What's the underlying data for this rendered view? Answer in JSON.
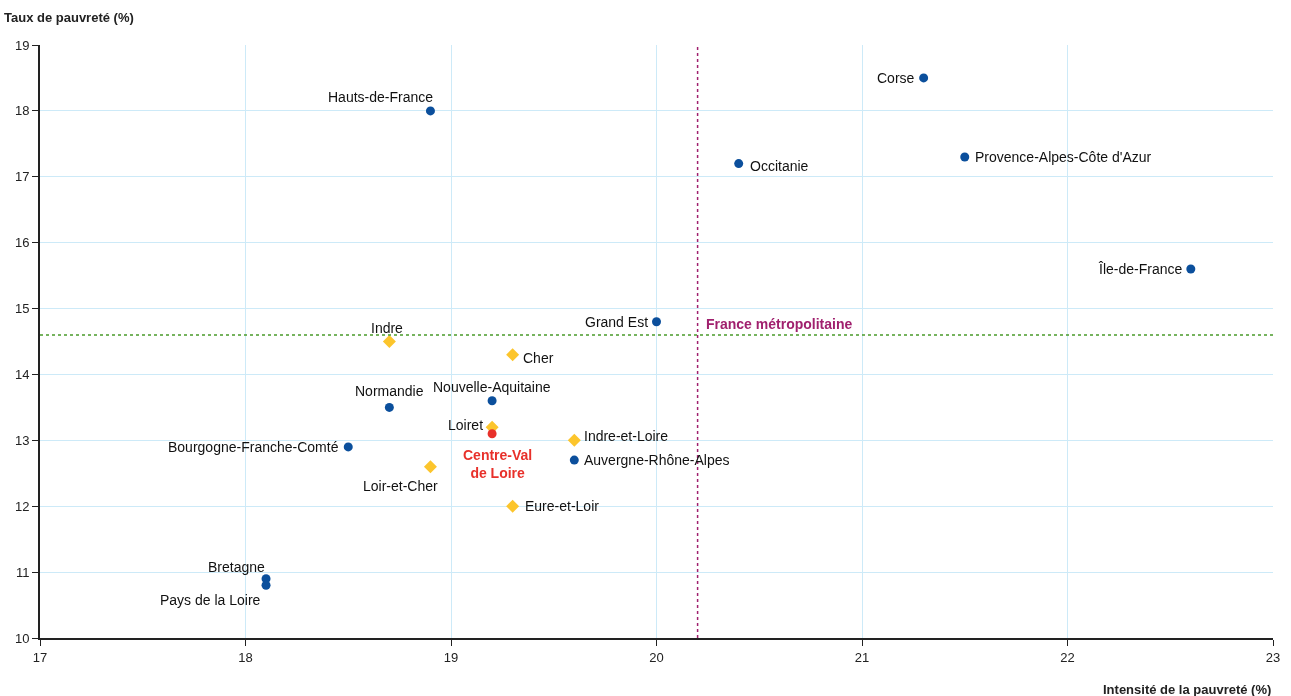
{
  "chart_data": {
    "type": "scatter",
    "xlabel": "Intensité de la pauvreté (%)",
    "ylabel": "Taux de pauvreté (%)",
    "xlim": [
      17,
      23
    ],
    "ylim": [
      10,
      19
    ],
    "xticks": [
      17,
      18,
      19,
      20,
      21,
      22,
      23
    ],
    "yticks": [
      10,
      11,
      12,
      13,
      14,
      15,
      16,
      17,
      18,
      19
    ],
    "grid": true,
    "legend": false,
    "series": [
      {
        "color": "#0b4f9c",
        "marker": "circle",
        "x": [
          18.9,
          21.3,
          20.4,
          21.5,
          22.6,
          20.0,
          18.7,
          19.2,
          18.5,
          19.6,
          18.1,
          18.1
        ],
        "values": [
          18.0,
          18.5,
          17.2,
          17.3,
          15.6,
          14.8,
          13.5,
          13.6,
          12.9,
          12.7,
          10.9,
          10.8
        ]
      },
      {
        "color": "#fcc52c",
        "marker": "diamond",
        "x": [
          18.7,
          19.3,
          19.2,
          19.6,
          18.9,
          19.3
        ],
        "values": [
          14.5,
          14.3,
          13.2,
          13.0,
          12.6,
          12.0
        ]
      },
      {
        "name": "Centre-Val\nde Loire",
        "color": "#e8302a",
        "marker": "circle",
        "x": [
          19.2
        ],
        "values": [
          13.1
        ]
      }
    ],
    "ref_lines": [
      {
        "axis": "x",
        "value": 20.2,
        "color": "#a0206e",
        "line_style": "dotted"
      },
      {
        "axis": "y",
        "value": 14.6,
        "label": "France métropolitaine",
        "color": "#4a9a2a",
        "line_style": "dotted"
      }
    ],
    "annotations": [
      {
        "text": "Hauts-de-France",
        "x": 18.9,
        "y": 18.0
      },
      {
        "text": "Corse",
        "x": 21.3,
        "y": 18.5
      },
      {
        "text": "Occitanie",
        "x": 20.4,
        "y": 17.2
      },
      {
        "text": "Provence-Alpes-Côte d'Azur",
        "x": 21.5,
        "y": 17.3
      },
      {
        "text": "Île-de-France",
        "x": 22.6,
        "y": 15.6
      },
      {
        "text": "Grand Est",
        "x": 20.0,
        "y": 14.8
      },
      {
        "text": "Normandie",
        "x": 18.7,
        "y": 13.5
      },
      {
        "text": "Nouvelle-Aquitaine",
        "x": 19.2,
        "y": 13.6
      },
      {
        "text": "Bourgogne-Franche-Comté",
        "x": 18.5,
        "y": 12.9
      },
      {
        "text": "Auvergne-Rhône-Alpes",
        "x": 19.6,
        "y": 12.7
      },
      {
        "text": "Bretagne",
        "x": 18.1,
        "y": 10.9
      },
      {
        "text": "Pays de la Loire",
        "x": 18.1,
        "y": 10.8
      },
      {
        "text": "Indre",
        "x": 18.7,
        "y": 14.5
      },
      {
        "text": "Cher",
        "x": 19.3,
        "y": 14.3
      },
      {
        "text": "Loiret",
        "x": 19.2,
        "y": 13.2
      },
      {
        "text": "Indre-et-Loire",
        "x": 19.6,
        "y": 13.0
      },
      {
        "text": "Loir-et-Cher",
        "x": 18.9,
        "y": 12.6
      },
      {
        "text": "Eure-et-Loir",
        "x": 19.3,
        "y": 12.0
      }
    ]
  }
}
